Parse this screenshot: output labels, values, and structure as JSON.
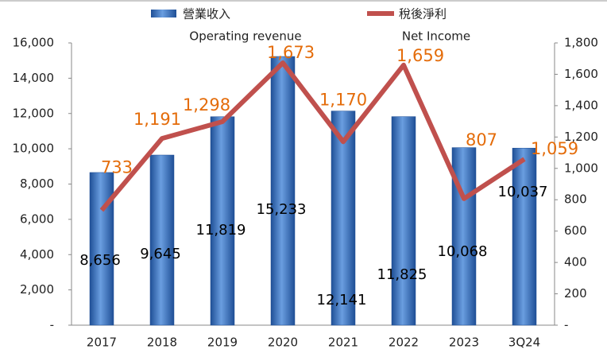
{
  "chart_data": {
    "type": "bar_line",
    "categories": [
      "2017",
      "2018",
      "2019",
      "2020",
      "2021",
      "2022",
      "2023",
      "3Q24"
    ],
    "series": [
      {
        "name": "營業收入",
        "label_en": "Operating revenue",
        "type": "bar",
        "color": "#3a72c2",
        "values": [
          8656,
          9645,
          11819,
          15233,
          12141,
          11825,
          10068,
          10037
        ],
        "value_labels": [
          "8,656",
          "9,645",
          "11,819",
          "15,233",
          "12,141",
          "11,825",
          "10,068",
          "10,037"
        ]
      },
      {
        "name": "稅後淨利",
        "label_en": "Net Income",
        "type": "line",
        "axis": "y2",
        "color": "#c0504d",
        "values": [
          733,
          1191,
          1298,
          1673,
          1170,
          1659,
          807,
          1059
        ],
        "value_labels": [
          "733",
          "1,191",
          "1,298",
          "1,673",
          "1,170",
          "1,659",
          "807",
          "1,059"
        ]
      }
    ],
    "ylim": [
      0,
      16000
    ],
    "yticks": [
      {
        "value": 0,
        "label": "-"
      },
      {
        "value": 2000,
        "label": "2,000"
      },
      {
        "value": 4000,
        "label": "4,000"
      },
      {
        "value": 6000,
        "label": "6,000"
      },
      {
        "value": 8000,
        "label": "8,000"
      },
      {
        "value": 10000,
        "label": "10,000"
      },
      {
        "value": 12000,
        "label": "12,000"
      },
      {
        "value": 14000,
        "label": "14,000"
      },
      {
        "value": 16000,
        "label": "16,000"
      }
    ],
    "y2lim": [
      0,
      1800
    ],
    "y2ticks": [
      {
        "value": 0,
        "label": "-"
      },
      200,
      400,
      600,
      800,
      {
        "value": 1000,
        "label": "1,000"
      },
      {
        "value": 1200,
        "label": "1,200"
      },
      {
        "value": 1400,
        "label": "1,400"
      },
      {
        "value": 1600,
        "label": "1,600"
      },
      {
        "value": 1800,
        "label": "1,800"
      }
    ],
    "grid": false
  }
}
